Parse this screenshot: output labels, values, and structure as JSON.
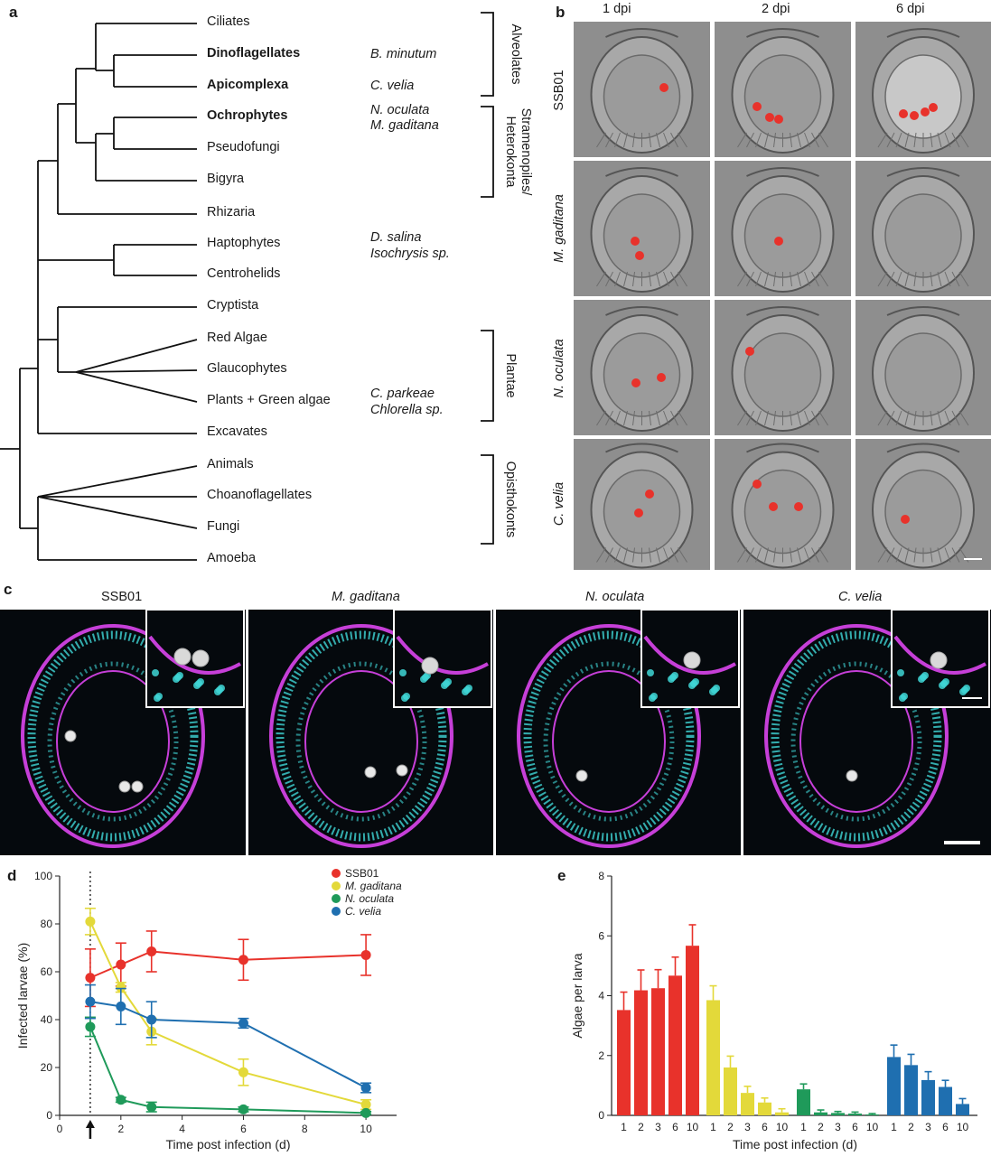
{
  "panels": {
    "a": "a",
    "b": "b",
    "c": "c",
    "d": "d",
    "e": "e"
  },
  "tree": {
    "taxa": [
      "Ciliates",
      "Dinoflagellates",
      "Apicomplexa",
      "Ochrophytes",
      "Pseudofungi",
      "Bigyra",
      "Rhizaria",
      "Haptophytes",
      "Centrohelids",
      "Cryptista",
      "Red Algae",
      "Glaucophytes",
      "Plants + Green algae",
      "Excavates",
      "Animals",
      "Choanoflagellates",
      "Fungi",
      "Amoeba"
    ],
    "bold_taxa": [
      "Dinoflagellates",
      "Apicomplexa",
      "Ochrophytes"
    ],
    "species": {
      "b_minutum": "B. minutum",
      "c_velia": "C. velia",
      "n_oculata": "N. oculata",
      "m_gaditana": "M. gaditana",
      "d_salina": "D. salina",
      "isochrysis": "Isochrysis sp.",
      "c_parkeae": "C. parkeae",
      "chlorella": "Chlorella sp."
    },
    "groups": {
      "alveolates": "Alveolates",
      "strameno_1": "Stramenopiles/",
      "strameno_2": "Heterokonta",
      "plantae": "Plantae",
      "opisthokonts": "Opisthokonts"
    }
  },
  "panel_b": {
    "columns": [
      "1 dpi",
      "2 dpi",
      "6 dpi"
    ],
    "rows": [
      "SSB01",
      "M. gaditana",
      "N. oculata",
      "C. velia"
    ]
  },
  "panel_c": {
    "titles": [
      "SSB01",
      "M. gaditana",
      "N. oculata",
      "C. velia"
    ]
  },
  "colors": {
    "ssb01": "#e8322b",
    "m_gaditana": "#e3d93a",
    "n_oculata": "#1f9a5a",
    "c_velia": "#1f6fb0",
    "nuclei": "#3fd6d6",
    "membrane": "#c63fd8"
  },
  "chart_data": [
    {
      "type": "line",
      "panel": "d",
      "xlabel": "Time post infection (d)",
      "ylabel": "Infected larvae (%)",
      "xlim": [
        0,
        11
      ],
      "ylim": [
        0,
        100
      ],
      "xticks": [
        0,
        2,
        4,
        6,
        8,
        10
      ],
      "yticks": [
        0,
        20,
        40,
        60,
        80,
        100
      ],
      "legend_position": "top-right",
      "marker_day": 1,
      "series": [
        {
          "name": "SSB01",
          "x": [
            1,
            2,
            3,
            6,
            10
          ],
          "y": [
            57.5,
            63,
            68.5,
            65,
            67
          ],
          "err": [
            12,
            9,
            8.5,
            8.5,
            8.5
          ]
        },
        {
          "name": "M. gaditana",
          "x": [
            1,
            2,
            3,
            6,
            10
          ],
          "y": [
            81,
            53.5,
            35,
            18,
            4.5
          ],
          "err": [
            5.5,
            2,
            5.5,
            5.5,
            2
          ]
        },
        {
          "name": "N. oculata",
          "x": [
            1,
            2,
            3,
            6,
            10
          ],
          "y": [
            37,
            6.5,
            3.5,
            2.5,
            1
          ],
          "err": [
            4,
            1,
            2,
            1,
            0.6
          ]
        },
        {
          "name": "C. velia",
          "x": [
            1,
            2,
            3,
            6,
            10
          ],
          "y": [
            47.5,
            45.5,
            40,
            38.5,
            11.5
          ],
          "err": [
            7,
            7.5,
            7.5,
            2,
            2
          ]
        }
      ]
    },
    {
      "type": "bar",
      "panel": "e",
      "xlabel": "Time post infection (d)",
      "ylabel": "Algae per larva",
      "ylim": [
        0,
        8
      ],
      "yticks": [
        0,
        2,
        4,
        6,
        8
      ],
      "categories": [
        "1",
        "2",
        "3",
        "6",
        "10"
      ],
      "series": [
        {
          "name": "SSB01",
          "values": [
            3.52,
            4.18,
            4.25,
            4.67,
            5.67
          ],
          "err": [
            0.6,
            0.68,
            0.62,
            0.62,
            0.7
          ]
        },
        {
          "name": "M. gaditana",
          "values": [
            3.85,
            1.6,
            0.75,
            0.43,
            0.1
          ],
          "err": [
            0.48,
            0.38,
            0.22,
            0.15,
            0.12
          ]
        },
        {
          "name": "N. oculata",
          "values": [
            0.87,
            0.1,
            0.08,
            0.06,
            0.03
          ],
          "err": [
            0.18,
            0.08,
            0.05,
            0.05,
            0.03
          ]
        },
        {
          "name": "C. velia",
          "values": [
            1.95,
            1.68,
            1.18,
            0.95,
            0.38
          ],
          "err": [
            0.4,
            0.36,
            0.28,
            0.22,
            0.18
          ]
        }
      ]
    }
  ]
}
